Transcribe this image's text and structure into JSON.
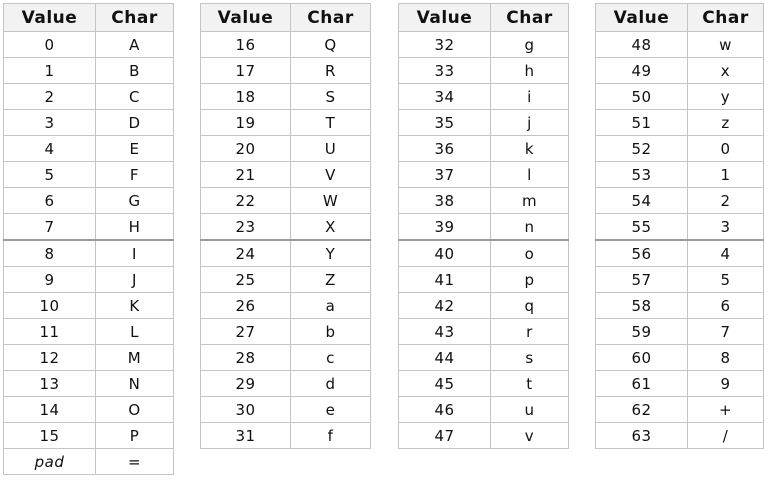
{
  "headers": {
    "value": "Value",
    "char": "Char"
  },
  "tables": [
    {
      "rows": [
        {
          "v": "0",
          "c": "A"
        },
        {
          "v": "1",
          "c": "B"
        },
        {
          "v": "2",
          "c": "C"
        },
        {
          "v": "3",
          "c": "D"
        },
        {
          "v": "4",
          "c": "E"
        },
        {
          "v": "5",
          "c": "F"
        },
        {
          "v": "6",
          "c": "G"
        },
        {
          "v": "7",
          "c": "H"
        },
        {
          "v": "8",
          "c": "I"
        },
        {
          "v": "9",
          "c": "J"
        },
        {
          "v": "10",
          "c": "K"
        },
        {
          "v": "11",
          "c": "L"
        },
        {
          "v": "12",
          "c": "M"
        },
        {
          "v": "13",
          "c": "N"
        },
        {
          "v": "14",
          "c": "O"
        },
        {
          "v": "15",
          "c": "P"
        }
      ],
      "extra": {
        "v": "pad",
        "c": "="
      }
    },
    {
      "rows": [
        {
          "v": "16",
          "c": "Q"
        },
        {
          "v": "17",
          "c": "R"
        },
        {
          "v": "18",
          "c": "S"
        },
        {
          "v": "19",
          "c": "T"
        },
        {
          "v": "20",
          "c": "U"
        },
        {
          "v": "21",
          "c": "V"
        },
        {
          "v": "22",
          "c": "W"
        },
        {
          "v": "23",
          "c": "X"
        },
        {
          "v": "24",
          "c": "Y"
        },
        {
          "v": "25",
          "c": "Z"
        },
        {
          "v": "26",
          "c": "a"
        },
        {
          "v": "27",
          "c": "b"
        },
        {
          "v": "28",
          "c": "c"
        },
        {
          "v": "29",
          "c": "d"
        },
        {
          "v": "30",
          "c": "e"
        },
        {
          "v": "31",
          "c": "f"
        }
      ]
    },
    {
      "rows": [
        {
          "v": "32",
          "c": "g"
        },
        {
          "v": "33",
          "c": "h"
        },
        {
          "v": "34",
          "c": "i"
        },
        {
          "v": "35",
          "c": "j"
        },
        {
          "v": "36",
          "c": "k"
        },
        {
          "v": "37",
          "c": "l"
        },
        {
          "v": "38",
          "c": "m"
        },
        {
          "v": "39",
          "c": "n"
        },
        {
          "v": "40",
          "c": "o"
        },
        {
          "v": "41",
          "c": "p"
        },
        {
          "v": "42",
          "c": "q"
        },
        {
          "v": "43",
          "c": "r"
        },
        {
          "v": "44",
          "c": "s"
        },
        {
          "v": "45",
          "c": "t"
        },
        {
          "v": "46",
          "c": "u"
        },
        {
          "v": "47",
          "c": "v"
        }
      ]
    },
    {
      "rows": [
        {
          "v": "48",
          "c": "w"
        },
        {
          "v": "49",
          "c": "x"
        },
        {
          "v": "50",
          "c": "y"
        },
        {
          "v": "51",
          "c": "z"
        },
        {
          "v": "52",
          "c": "0"
        },
        {
          "v": "53",
          "c": "1"
        },
        {
          "v": "54",
          "c": "2"
        },
        {
          "v": "55",
          "c": "3"
        },
        {
          "v": "56",
          "c": "4"
        },
        {
          "v": "57",
          "c": "5"
        },
        {
          "v": "58",
          "c": "6"
        },
        {
          "v": "59",
          "c": "7"
        },
        {
          "v": "60",
          "c": "8"
        },
        {
          "v": "61",
          "c": "9"
        },
        {
          "v": "62",
          "c": "+"
        },
        {
          "v": "63",
          "c": "/"
        }
      ]
    }
  ]
}
